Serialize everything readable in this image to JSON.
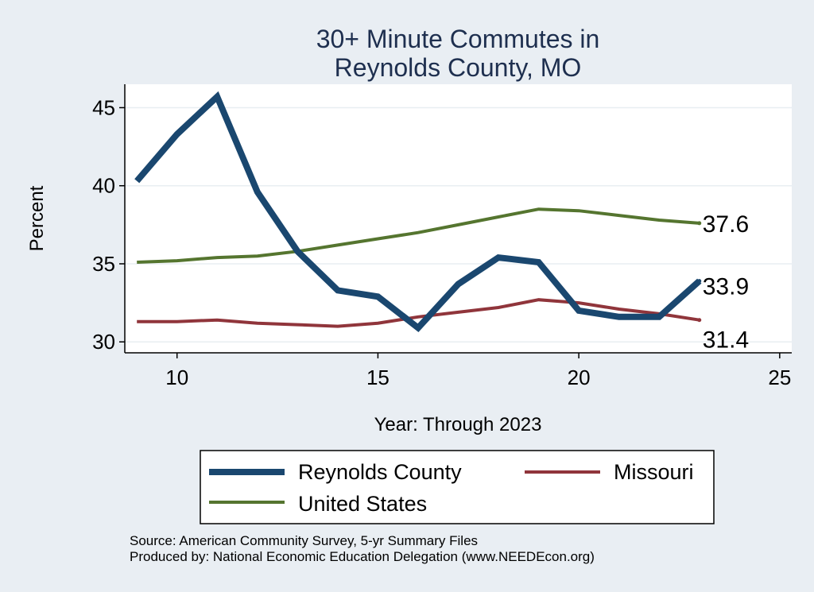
{
  "chart_data": {
    "type": "line",
    "title": [
      "30+ Minute Commutes in",
      "Reynolds County, MO"
    ],
    "xlabel": "Year: Through 2023",
    "ylabel": "Percent",
    "xlim": [
      8.7,
      25.3
    ],
    "ylim": [
      29.3,
      46.5
    ],
    "xticks": [
      10,
      15,
      20,
      25
    ],
    "yticks": [
      30,
      35,
      40,
      45
    ],
    "grid": true,
    "legend_position": "bottom",
    "x": [
      9,
      10,
      11,
      12,
      13,
      14,
      15,
      16,
      17,
      18,
      19,
      20,
      21,
      22,
      23
    ],
    "series": [
      {
        "name": "Reynolds County",
        "color": "#1a476f",
        "values": [
          40.3,
          43.3,
          45.7,
          39.6,
          35.8,
          33.3,
          32.9,
          30.9,
          33.7,
          35.4,
          35.1,
          32.0,
          31.6,
          31.6,
          33.9
        ],
        "end_label": "33.9"
      },
      {
        "name": "Missouri",
        "color": "#90353b",
        "values": [
          31.3,
          31.3,
          31.4,
          31.2,
          31.1,
          31.0,
          31.2,
          31.6,
          31.9,
          32.2,
          32.7,
          32.5,
          32.1,
          31.8,
          31.4
        ],
        "end_label": "31.4"
      },
      {
        "name": "United States",
        "color": "#55752f",
        "values": [
          35.1,
          35.2,
          35.4,
          35.5,
          35.8,
          36.2,
          36.6,
          37.0,
          37.5,
          38.0,
          38.5,
          38.4,
          38.1,
          37.8,
          37.6
        ],
        "end_label": "37.6"
      }
    ]
  },
  "footer": {
    "source": "Source: American Community Survey, 5-yr Summary Files",
    "produced_by": "Produced by: National Economic Education Delegation (www.NEEDEcon.org)"
  }
}
